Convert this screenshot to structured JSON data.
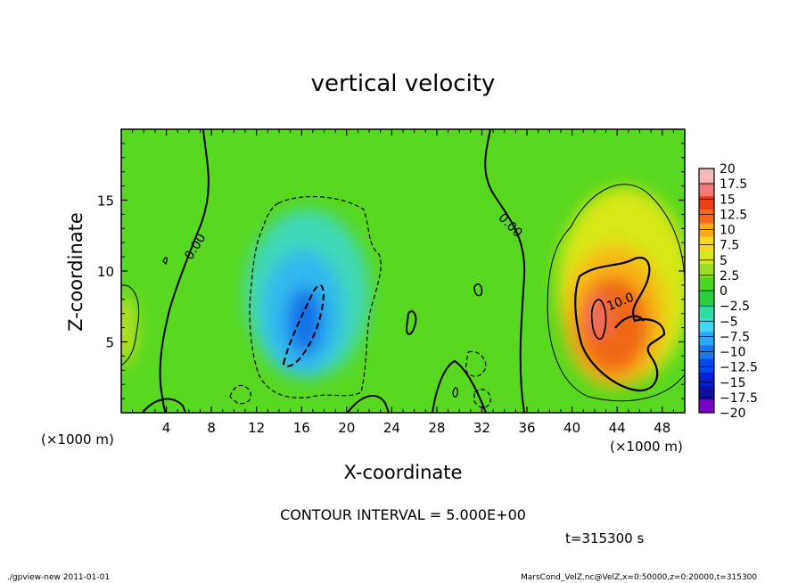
{
  "chart_data": {
    "type": "heatmap",
    "title": "vertical velocity",
    "xlabel": "X-coordinate",
    "ylabel": "Z-coordinate",
    "x_unit": "(×1000 m)",
    "y_unit": "(×1000 m)",
    "xlim": [
      0,
      50
    ],
    "ylim": [
      0,
      20
    ],
    "x_ticks": [
      4,
      8,
      12,
      16,
      20,
      24,
      28,
      32,
      36,
      40,
      44,
      48
    ],
    "y_ticks": [
      5,
      10,
      15
    ],
    "contour_labels": [
      {
        "text": "0.00",
        "x": 6.6,
        "y": 11.7,
        "angle": -58
      },
      {
        "text": "0.00",
        "x": 34.5,
        "y": 13.2,
        "angle": 45
      },
      {
        "text": "10.0",
        "x": 44.3,
        "y": 7.8,
        "angle": -22
      }
    ],
    "colorbar": {
      "colors": [
        "#7a00c8",
        "#1010a0",
        "#0020d8",
        "#0048f0",
        "#1a78f5",
        "#2aaaf4",
        "#40d8f0",
        "#2ee0a0",
        "#28d040",
        "#48d820",
        "#98e020",
        "#d8e818",
        "#f8d818",
        "#f8a818",
        "#f86818",
        "#f04018",
        "#f87878",
        "#f8b8b8"
      ],
      "labels": [
        "20",
        "17.5",
        "15",
        "12.5",
        "10",
        "7.5",
        "5",
        "2.5",
        "0",
        "−2.5",
        "−5",
        "−7.5",
        "−10",
        "−12.5",
        "−15",
        "−17.5",
        "−20"
      ]
    },
    "contour_interval_text": "CONTOUR INTERVAL = 5.000E+00",
    "time_text": "t=315300 s",
    "footer_left": "./gpview-new   2011-01-01",
    "footer_right": "MarsCond_VelZ.nc@VelZ,x=0:50000,z=0:20000,t=315300",
    "background": "#58d820"
  }
}
